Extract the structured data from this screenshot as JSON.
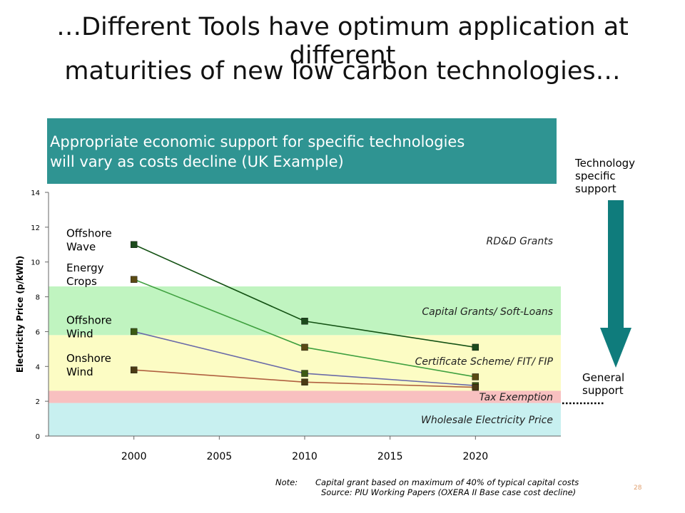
{
  "slide": {
    "title_line1": "…Different Tools have optimum application at different",
    "title_line2": "maturities of new low carbon technologies…",
    "subtitle_line1": "Appropriate economic support for specific technologies",
    "subtitle_line2": "will vary as costs decline (UK Example)",
    "arrow_top_label": "Technology specific support",
    "arrow_bottom_label": "General support",
    "note_label": "Note:",
    "note_text": "Capital grant based on maximum of 40% of typical capital costs",
    "source_text": "Source: PIU Working Papers (OXERA II Base case cost decline)",
    "page_number": "28",
    "colors": {
      "subtitle_bg": "#2f9492",
      "arrow": "#0f7c7c"
    }
  },
  "chart_data": {
    "type": "line",
    "ylabel": "Electricity Price (p/kWh)",
    "xlabel": "",
    "x_ticks": [
      "2000",
      "2005",
      "2010",
      "2015",
      "2020"
    ],
    "x_tick_values": [
      2000,
      2005,
      2010,
      2015,
      2020
    ],
    "xlim": [
      1995,
      2025
    ],
    "y_ticks": [
      "0",
      "2",
      "4",
      "6",
      "8",
      "10",
      "12",
      "14"
    ],
    "ylim": [
      0,
      14
    ],
    "grid": false,
    "series": [
      {
        "name": "Offshore Wave",
        "label_lines": [
          "Offshore",
          "Wave"
        ],
        "x": [
          2000,
          2010,
          2020
        ],
        "values": [
          11.0,
          6.6,
          5.1
        ],
        "color": "#145214",
        "marker": "#1c4a1c"
      },
      {
        "name": "Energy Crops",
        "label_lines": [
          "Energy",
          "Crops"
        ],
        "x": [
          2000,
          2010,
          2020
        ],
        "values": [
          9.0,
          5.1,
          3.4
        ],
        "color": "#3fa03f",
        "marker": "#5a4a14"
      },
      {
        "name": "Offshore Wind",
        "label_lines": [
          "Offshore",
          "Wind"
        ],
        "x": [
          2000,
          2010,
          2020
        ],
        "values": [
          6.0,
          3.6,
          2.9
        ],
        "color": "#6a6aa8",
        "marker": "#3c5a14"
      },
      {
        "name": "Onshore Wind",
        "label_lines": [
          "Onshore",
          "Wind"
        ],
        "x": [
          2000,
          2010,
          2020
        ],
        "values": [
          3.8,
          3.1,
          2.8
        ],
        "color": "#b06040",
        "marker": "#4a3a14"
      }
    ],
    "bands": [
      {
        "label": "Wholesale Electricity Price",
        "from": 0.0,
        "to": 1.9,
        "color": "#c8f0f0"
      },
      {
        "label": "Tax Exemption",
        "from": 1.9,
        "to": 2.6,
        "color": "#f8c0c0"
      },
      {
        "label": "Certificate Scheme/ FIT/ FIP",
        "from": 2.6,
        "to": 5.8,
        "color": "#fcfcc4"
      },
      {
        "label": "Capital Grants/ Soft-Loans",
        "from": 5.8,
        "to": 8.6,
        "color": "#c0f4c0"
      },
      {
        "label": "RD&D Grants",
        "from": 8.6,
        "to": 14.0,
        "color": "#ffffff"
      }
    ]
  }
}
